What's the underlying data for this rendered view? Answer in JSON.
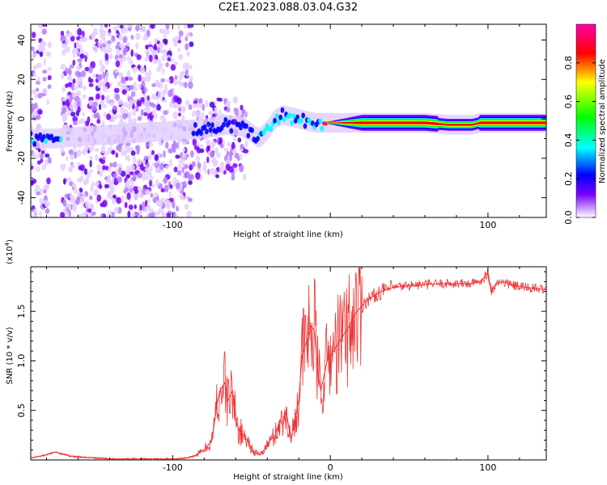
{
  "title": "C2E1.2023.088.03.04.G32",
  "chart_data": [
    {
      "type": "heatmap",
      "xlabel": "Height of straight line (km)",
      "ylabel": "Frequency (Hz)",
      "xlim": [
        -190,
        137
      ],
      "ylim": [
        -50,
        48
      ],
      "xticks": [
        -100,
        0,
        100
      ],
      "xtick_labels": [
        "-100",
        "",
        "100"
      ],
      "yticks": [
        -40,
        -20,
        0,
        20,
        40
      ],
      "ytick_labels": [
        "-40",
        "-20",
        "0",
        "20",
        "40"
      ],
      "colorbar": {
        "label": "Normalized spectral amplitude",
        "range": [
          0.0,
          1.0
        ],
        "ticks": [
          0.0,
          0.2,
          0.4,
          0.6,
          0.8
        ],
        "tick_labels": [
          "0.0",
          "0.2",
          "0.4",
          "0.6",
          "0.8"
        ],
        "colormap": [
          "#ffffff",
          "#7a00ff",
          "#0000ff",
          "#00ffff",
          "#00ff00",
          "#ffff00",
          "#ff0000",
          "#ff00aa"
        ]
      },
      "ridge": {
        "x": [
          -190,
          -175,
          -160,
          -80,
          -65,
          -55,
          -45,
          -40,
          -35,
          -30,
          -20,
          -10,
          0,
          20,
          60,
          75,
          80,
          90,
          95,
          110,
          137
        ],
        "y": [
          -10,
          -10,
          -9,
          -5,
          -3,
          -4,
          -10,
          -6,
          0,
          2,
          0,
          -2,
          -2,
          -2,
          -2,
          -3,
          -3,
          -3,
          -2,
          -2,
          -2
        ]
      }
    },
    {
      "type": "line",
      "xlabel": "Height of straight line (km)",
      "ylabel": "SNR (10 * v/v)",
      "multiplier": "(x10^4)",
      "multiplier_base": "(x10",
      "multiplier_exp": "4",
      "xlim": [
        -190,
        137
      ],
      "ylim": [
        0,
        1.95
      ],
      "xticks": [
        -100,
        0,
        100
      ],
      "xtick_labels": [
        "-100",
        "0",
        "100"
      ],
      "yticks": [
        0.5,
        1.0,
        1.5
      ],
      "ytick_labels": [
        "0.5",
        "1.0",
        "1.5"
      ],
      "series": [
        {
          "color": "#ee3333",
          "x": [
            -190,
            -180,
            -175,
            -170,
            -165,
            -160,
            -150,
            -140,
            -120,
            -100,
            -90,
            -85,
            -80,
            -75,
            -72,
            -70,
            -67,
            -65,
            -62,
            -60,
            -58,
            -55,
            -52,
            -50,
            -48,
            -45,
            -42,
            -40,
            -38,
            -35,
            -32,
            -30,
            -28,
            -25,
            -22,
            -20,
            -18,
            -16,
            -14,
            -12,
            -10,
            -8,
            -6,
            -4,
            -2,
            0,
            2,
            4,
            6,
            8,
            10,
            12,
            14,
            16,
            18,
            20,
            22,
            25,
            28,
            30,
            35,
            40,
            45,
            50,
            60,
            70,
            80,
            90,
            95,
            98,
            100,
            102,
            105,
            110,
            115,
            120,
            125,
            130,
            137
          ],
          "y": [
            0.02,
            0.05,
            0.08,
            0.06,
            0.04,
            0.03,
            0.02,
            0.01,
            0.01,
            0.01,
            0.02,
            0.05,
            0.1,
            0.2,
            0.55,
            0.7,
            0.78,
            0.6,
            0.7,
            0.4,
            0.3,
            0.25,
            0.18,
            0.12,
            0.08,
            0.05,
            0.1,
            0.15,
            0.2,
            0.25,
            0.4,
            0.35,
            0.5,
            0.2,
            0.45,
            0.6,
            1.05,
            1.15,
            1.25,
            1.35,
            1.3,
            0.9,
            0.7,
            0.85,
            1.0,
            1.05,
            1.1,
            1.15,
            1.2,
            1.25,
            1.3,
            1.35,
            1.42,
            1.48,
            1.52,
            1.55,
            1.6,
            1.63,
            1.66,
            1.68,
            1.72,
            1.74,
            1.75,
            1.76,
            1.77,
            1.78,
            1.78,
            1.78,
            1.8,
            1.85,
            1.9,
            1.7,
            1.78,
            1.8,
            1.76,
            1.75,
            1.74,
            1.73,
            1.72
          ]
        }
      ]
    }
  ]
}
